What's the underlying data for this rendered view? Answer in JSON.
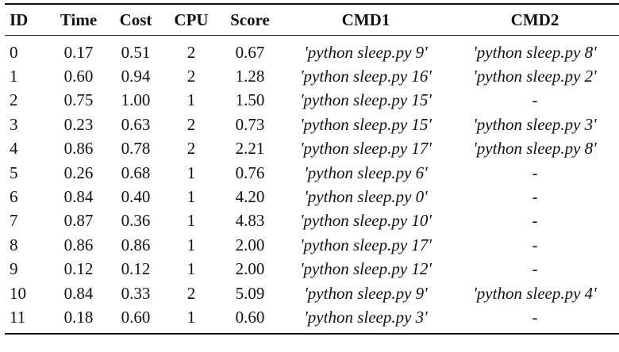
{
  "table": {
    "headers": [
      "ID",
      "Time",
      "Cost",
      "CPU",
      "Score",
      "CMD1",
      "CMD2"
    ],
    "rows": [
      [
        "0",
        "0.17",
        "0.51",
        "2",
        "0.67",
        "'python sleep.py 9'",
        "'python sleep.py 8'"
      ],
      [
        "1",
        "0.60",
        "0.94",
        "2",
        "1.28",
        "'python sleep.py 16'",
        "'python sleep.py 2'"
      ],
      [
        "2",
        "0.75",
        "1.00",
        "1",
        "1.50",
        "'python sleep.py 15'",
        "-"
      ],
      [
        "3",
        "0.23",
        "0.63",
        "2",
        "0.73",
        "'python sleep.py 15'",
        "'python sleep.py 3'"
      ],
      [
        "4",
        "0.86",
        "0.78",
        "2",
        "2.21",
        "'python sleep.py 17'",
        "'python sleep.py 8'"
      ],
      [
        "5",
        "0.26",
        "0.68",
        "1",
        "0.76",
        "'python sleep.py 6'",
        "-"
      ],
      [
        "6",
        "0.84",
        "0.40",
        "1",
        "4.20",
        "'python sleep.py 0'",
        "-"
      ],
      [
        "7",
        "0.87",
        "0.36",
        "1",
        "4.83",
        "'python sleep.py 10'",
        "-"
      ],
      [
        "8",
        "0.86",
        "0.86",
        "1",
        "2.00",
        "'python sleep.py 17'",
        "-"
      ],
      [
        "9",
        "0.12",
        "0.12",
        "1",
        "2.00",
        "'python sleep.py 12'",
        "-"
      ],
      [
        "10",
        "0.84",
        "0.33",
        "2",
        "5.09",
        "'python sleep.py 9'",
        "'python sleep.py 4'"
      ],
      [
        "11",
        "0.18",
        "0.60",
        "1",
        "0.60",
        "'python sleep.py 3'",
        "-"
      ]
    ]
  }
}
